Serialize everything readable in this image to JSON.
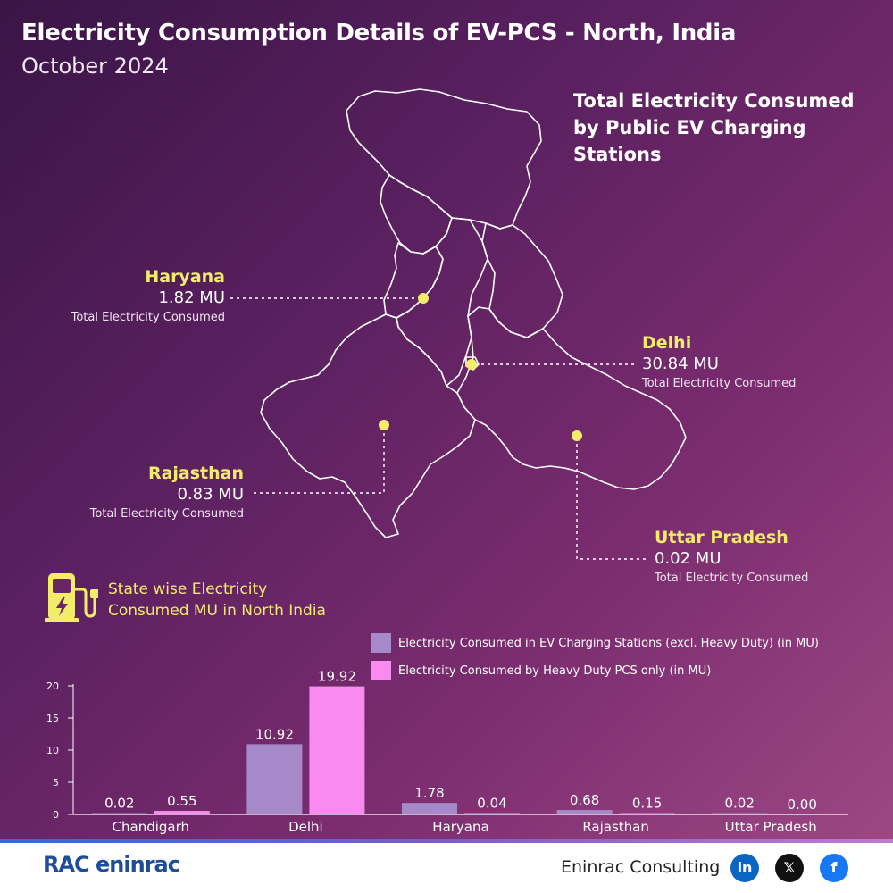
{
  "header": {
    "title": "Electricity Consumption Details of EV-PCS - North, India",
    "subtitle": "October 2024"
  },
  "map": {
    "title": "Total Electricity Consumed by Public EV Charging Stations",
    "states": [
      {
        "name": "Haryana",
        "value": "1.82 MU",
        "caption": "Total Electricity Consumed"
      },
      {
        "name": "Delhi",
        "value": "30.84 MU",
        "caption": "Total Electricity Consumed"
      },
      {
        "name": "Rajasthan",
        "value": "0.83 MU",
        "caption": "Total Electricity Consumed"
      },
      {
        "name": "Uttar Pradesh",
        "value": "0.02 MU",
        "caption": "Total Electricity Consumed"
      }
    ]
  },
  "section": {
    "title_line1": "State wise Electricity",
    "title_line2": "Consumed MU in North India",
    "icon": "ev-charger-icon"
  },
  "chart_data": {
    "type": "bar",
    "categories": [
      "Chandigarh",
      "Delhi",
      "Haryana",
      "Rajasthan",
      "Uttar Pradesh"
    ],
    "series": [
      {
        "name": "Electricity Consumed in EV Charging Stations (excl. Heavy Duty) (in MU)",
        "values": [
          0.02,
          10.92,
          1.78,
          0.68,
          0.02
        ],
        "labels": [
          "0.02",
          "10.92",
          "1.78",
          "0.68",
          "0.02"
        ],
        "color": "#a689c8"
      },
      {
        "name": "Electricity Consumed by Heavy Duty PCS only (in MU)",
        "values": [
          0.55,
          19.92,
          0.04,
          0.15,
          0.0
        ],
        "labels": [
          "0.55",
          "19.92",
          "0.04",
          "0.15",
          "0.00"
        ],
        "color": "#f98af0"
      }
    ],
    "yticks": [
      "0",
      "5",
      "10",
      "15",
      "20"
    ],
    "ylim": [
      0,
      20
    ],
    "grid": false,
    "legend": "top-right"
  },
  "footer": {
    "logo_text": "RAC eninrac",
    "company": "Eninrac Consulting",
    "social": [
      {
        "icon": "linkedin-icon",
        "label": "in",
        "color": "#0a66c2"
      },
      {
        "icon": "x-icon",
        "label": "𝕏",
        "color": "#111111"
      },
      {
        "icon": "facebook-icon",
        "label": "f",
        "color": "#1877f2"
      }
    ]
  }
}
